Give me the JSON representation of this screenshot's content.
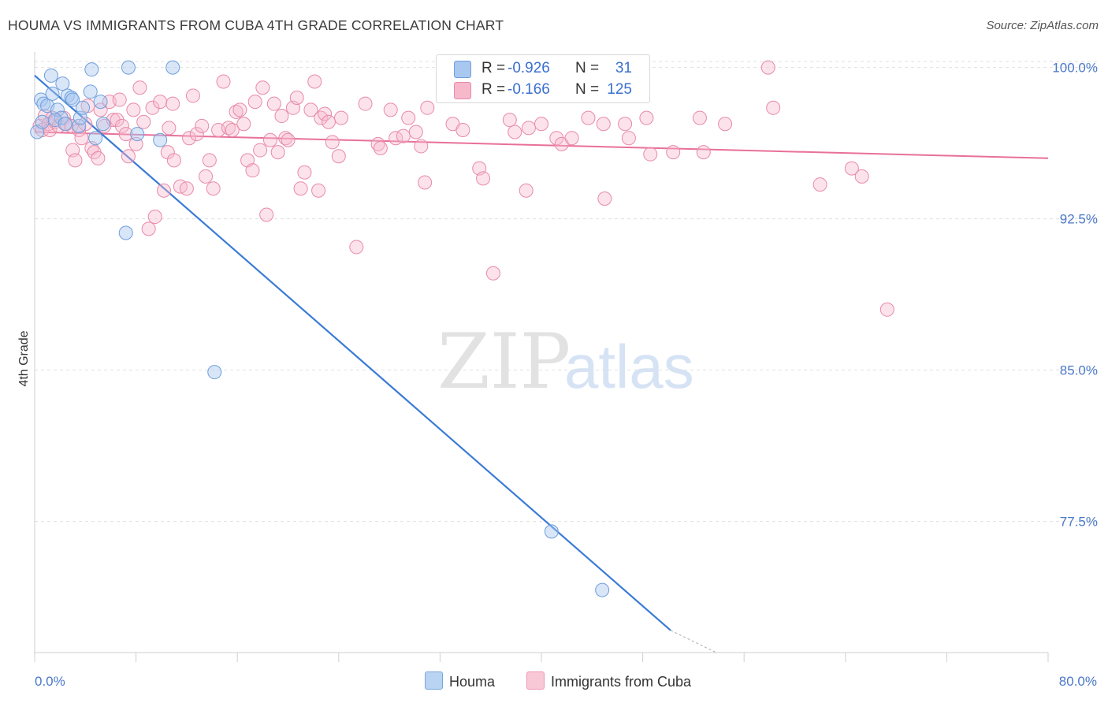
{
  "header": {
    "title": "HOUMA VS IMMIGRANTS FROM CUBA 4TH GRADE CORRELATION CHART",
    "source": "Source: ZipAtlas.com"
  },
  "watermark": {
    "zip": "ZIP",
    "atlas": "atlas"
  },
  "stats": [
    {
      "r_label": "R =",
      "r_value": "-0.926",
      "n_label": "N =",
      "n_value": "31",
      "color": "#a8c8f0",
      "border": "#6f9fdc"
    },
    {
      "r_label": "R =",
      "r_value": "-0.166",
      "n_label": "N =",
      "n_value": "125",
      "color": "#f7b8cc",
      "border": "#e88aa8"
    }
  ],
  "legend": [
    {
      "label": "Houma",
      "color": "#b9d3f3",
      "border": "#7aa6dd"
    },
    {
      "label": "Immigrants from Cuba",
      "color": "#f9c8d6",
      "border": "#ec97b2"
    }
  ],
  "colors": {
    "houma_line": "#3a7bd5",
    "cuba_line": "#e8709a",
    "tick_text": "#4a78c9"
  },
  "chart_data": {
    "type": "scatter",
    "title": "HOUMA VS IMMIGRANTS FROM CUBA 4TH GRADE CORRELATION CHART",
    "xlabel": "",
    "ylabel": "4th Grade",
    "xlim": [
      0,
      80
    ],
    "ylim": [
      71.0,
      101.0
    ],
    "x_tick_labels": [
      "0.0%",
      "80.0%"
    ],
    "y_ticks": [
      {
        "value": 100.0,
        "label": "100.0%"
      },
      {
        "value": 92.5,
        "label": "92.5%"
      },
      {
        "value": 85.0,
        "label": "85.0%"
      },
      {
        "value": 77.5,
        "label": "77.5%"
      }
    ],
    "grid": "horizontal dashed",
    "legend_position": "bottom",
    "series": [
      {
        "name": "Houma",
        "points": [
          [
            0.2,
            96.8
          ],
          [
            0.5,
            98.4
          ],
          [
            0.7,
            98.2
          ],
          [
            1.0,
            98.1
          ],
          [
            1.3,
            99.6
          ],
          [
            1.4,
            98.7
          ],
          [
            1.8,
            97.9
          ],
          [
            2.1,
            97.5
          ],
          [
            2.2,
            99.2
          ],
          [
            2.6,
            98.6
          ],
          [
            2.9,
            98.5
          ],
          [
            3.0,
            98.4
          ],
          [
            3.5,
            97.1
          ],
          [
            3.6,
            97.5
          ],
          [
            3.8,
            98.0
          ],
          [
            4.4,
            98.8
          ],
          [
            4.5,
            99.9
          ],
          [
            4.8,
            96.5
          ],
          [
            5.2,
            98.3
          ],
          [
            5.4,
            97.2
          ],
          [
            7.2,
            91.8
          ],
          [
            7.4,
            100.0
          ],
          [
            8.1,
            96.7
          ],
          [
            9.9,
            96.4
          ],
          [
            10.9,
            100.0
          ],
          [
            14.2,
            84.9
          ],
          [
            40.8,
            77.0
          ],
          [
            44.8,
            74.1
          ],
          [
            0.6,
            97.3
          ],
          [
            1.6,
            97.4
          ],
          [
            2.4,
            97.2
          ]
        ],
        "trend": {
          "x": [
            0.0,
            50.2
          ],
          "y": [
            99.6,
            72.1
          ]
        },
        "trend_dashed_extension": {
          "x": [
            50.2,
            53.8
          ],
          "y": [
            72.1,
            70.2
          ]
        }
      },
      {
        "name": "Immigrants from Cuba",
        "points": [
          [
            0.4,
            97.1
          ],
          [
            0.6,
            96.9
          ],
          [
            0.8,
            97.6
          ],
          [
            1.1,
            97.2
          ],
          [
            1.2,
            96.9
          ],
          [
            1.4,
            97.5
          ],
          [
            1.6,
            97.3
          ],
          [
            1.9,
            97.1
          ],
          [
            2.3,
            97.5
          ],
          [
            2.5,
            97.2
          ],
          [
            2.9,
            97.1
          ],
          [
            3.0,
            95.9
          ],
          [
            3.2,
            95.4
          ],
          [
            3.5,
            96.9
          ],
          [
            3.7,
            96.5
          ],
          [
            4.0,
            97.2
          ],
          [
            4.2,
            98.1
          ],
          [
            4.5,
            96.0
          ],
          [
            4.7,
            95.8
          ],
          [
            5.0,
            95.5
          ],
          [
            5.2,
            97.9
          ],
          [
            5.5,
            97.1
          ],
          [
            5.9,
            98.3
          ],
          [
            6.2,
            97.4
          ],
          [
            6.5,
            97.4
          ],
          [
            6.9,
            97.1
          ],
          [
            7.2,
            96.7
          ],
          [
            7.4,
            95.6
          ],
          [
            7.8,
            97.9
          ],
          [
            8.0,
            96.2
          ],
          [
            8.3,
            99.0
          ],
          [
            8.6,
            97.3
          ],
          [
            9.0,
            92.0
          ],
          [
            9.3,
            98.0
          ],
          [
            9.5,
            92.6
          ],
          [
            9.9,
            98.3
          ],
          [
            10.2,
            93.9
          ],
          [
            10.5,
            95.8
          ],
          [
            10.9,
            98.2
          ],
          [
            11.0,
            95.4
          ],
          [
            11.5,
            94.1
          ],
          [
            12.0,
            94.0
          ],
          [
            12.2,
            96.5
          ],
          [
            12.5,
            98.6
          ],
          [
            12.8,
            96.7
          ],
          [
            13.2,
            97.1
          ],
          [
            13.5,
            94.6
          ],
          [
            13.8,
            95.4
          ],
          [
            14.1,
            94.0
          ],
          [
            14.5,
            96.9
          ],
          [
            14.9,
            99.3
          ],
          [
            15.3,
            97.0
          ],
          [
            15.6,
            96.9
          ],
          [
            15.9,
            97.8
          ],
          [
            16.2,
            97.9
          ],
          [
            16.5,
            97.2
          ],
          [
            16.8,
            95.4
          ],
          [
            17.2,
            94.9
          ],
          [
            17.4,
            98.3
          ],
          [
            17.8,
            95.9
          ],
          [
            18.0,
            99.0
          ],
          [
            18.3,
            92.7
          ],
          [
            18.6,
            96.4
          ],
          [
            18.9,
            98.2
          ],
          [
            19.2,
            95.8
          ],
          [
            19.5,
            97.6
          ],
          [
            19.8,
            96.5
          ],
          [
            20.0,
            96.4
          ],
          [
            20.4,
            98.0
          ],
          [
            20.7,
            98.5
          ],
          [
            21.0,
            94.0
          ],
          [
            21.3,
            94.8
          ],
          [
            21.8,
            97.9
          ],
          [
            22.1,
            99.3
          ],
          [
            22.4,
            93.9
          ],
          [
            22.6,
            97.5
          ],
          [
            22.9,
            97.7
          ],
          [
            23.2,
            97.3
          ],
          [
            23.5,
            96.3
          ],
          [
            24.0,
            95.6
          ],
          [
            25.4,
            91.1
          ],
          [
            26.1,
            98.2
          ],
          [
            27.1,
            96.2
          ],
          [
            27.3,
            96.0
          ],
          [
            28.1,
            97.9
          ],
          [
            28.5,
            96.5
          ],
          [
            29.1,
            96.6
          ],
          [
            29.5,
            97.5
          ],
          [
            30.1,
            96.8
          ],
          [
            30.5,
            96.1
          ],
          [
            30.8,
            94.3
          ],
          [
            33.0,
            97.2
          ],
          [
            33.8,
            96.9
          ],
          [
            35.1,
            95.0
          ],
          [
            35.4,
            94.5
          ],
          [
            36.2,
            89.8
          ],
          [
            37.5,
            97.4
          ],
          [
            37.9,
            96.8
          ],
          [
            38.8,
            93.9
          ],
          [
            39.0,
            97.0
          ],
          [
            40.0,
            97.2
          ],
          [
            41.2,
            96.5
          ],
          [
            41.6,
            96.2
          ],
          [
            42.4,
            96.5
          ],
          [
            43.7,
            97.5
          ],
          [
            44.9,
            97.2
          ],
          [
            45.0,
            93.5
          ],
          [
            46.6,
            97.2
          ],
          [
            46.9,
            96.5
          ],
          [
            48.3,
            97.5
          ],
          [
            48.6,
            95.7
          ],
          [
            50.4,
            95.8
          ],
          [
            52.5,
            97.5
          ],
          [
            52.8,
            95.8
          ],
          [
            54.5,
            97.2
          ],
          [
            57.9,
            100.0
          ],
          [
            58.3,
            98.0
          ],
          [
            62.0,
            94.2
          ],
          [
            64.5,
            95.0
          ],
          [
            65.3,
            94.6
          ],
          [
            67.3,
            88.0
          ],
          [
            31.0,
            98.0
          ],
          [
            10.6,
            97.0
          ],
          [
            6.7,
            98.4
          ],
          [
            24.2,
            97.5
          ]
        ],
        "trend": {
          "x": [
            0.0,
            80.0
          ],
          "y": [
            96.8,
            95.5
          ]
        }
      }
    ]
  }
}
